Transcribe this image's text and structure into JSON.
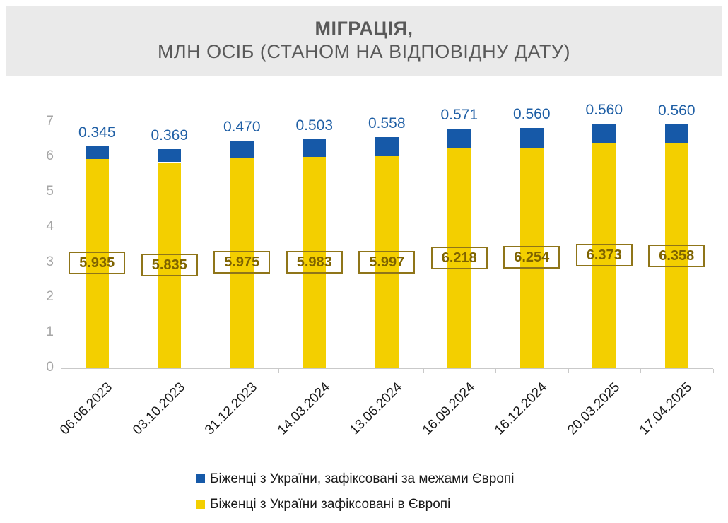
{
  "title": {
    "line1": "МІГРАЦІЯ,",
    "line2": "МЛН ОСІБ (СТАНОМ НА ВІДПОВІДНУ ДАТУ)"
  },
  "colors": {
    "bar_outside_europe": "#1659A8",
    "bar_in_europe": "#F3CF00",
    "outside_value_label": "#1F5FA5",
    "in_europe_value_label": "#7E6300",
    "box_border": "#8F7519",
    "axis_line": "#C9C9C9",
    "y_tick_label": "#A6A6A6",
    "title_text": "#595959",
    "header_background": "#EAEAEA"
  },
  "chart_data": {
    "type": "bar",
    "stacked": true,
    "title": "МІГРАЦІЯ, МЛН ОСІБ (СТАНОМ НА ВІДПОВІДНУ ДАТУ)",
    "categories": [
      "06.06.2023",
      "03.10.2023",
      "31.12.2023",
      "14.03.2024",
      "13.06.2024",
      "16.09.2024",
      "16.12.2024",
      "20.03.2025",
      "17.04.2025"
    ],
    "series": [
      {
        "name": "Біженці з України, зафіксовані за межами Європі",
        "color_key": "bar_outside_europe",
        "values": [
          0.345,
          0.369,
          0.47,
          0.503,
          0.558,
          0.571,
          0.56,
          0.56,
          0.56
        ]
      },
      {
        "name": "Біженці з України зафіксовані в Європі",
        "color_key": "bar_in_europe",
        "values": [
          5.935,
          5.835,
          5.975,
          5.983,
          5.997,
          6.218,
          6.254,
          6.373,
          6.358
        ]
      }
    ],
    "xlabel": "",
    "ylabel": "",
    "ylim": [
      0,
      7
    ],
    "yticks": [
      0,
      1,
      2,
      3,
      4,
      5,
      6,
      7
    ],
    "grid": false,
    "legend_position": "bottom",
    "value_label_decimals": 3
  }
}
